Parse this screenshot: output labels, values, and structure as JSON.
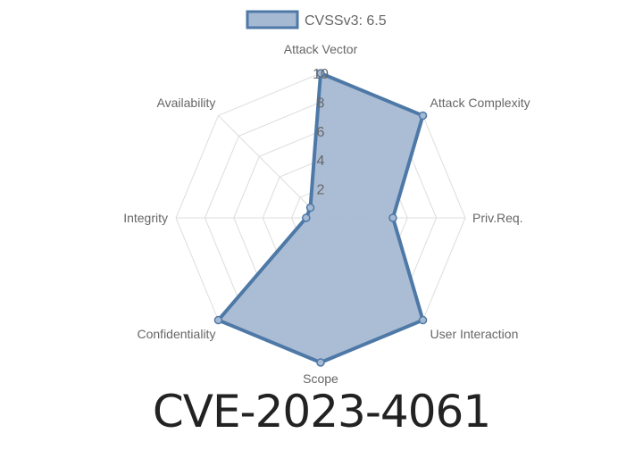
{
  "chart_data": {
    "type": "radar",
    "title": "CVE-2023-4061",
    "categories": [
      "Attack Vector",
      "Attack Complexity",
      "Priv.Req.",
      "User Interaction",
      "Scope",
      "Confidentiality",
      "Integrity",
      "Availability"
    ],
    "series": [
      {
        "name": "CVSSv3: 6.5",
        "values": [
          10,
          10,
          5,
          10,
          10,
          10,
          1,
          1
        ]
      }
    ],
    "rlim": [
      0,
      10
    ],
    "ticks": [
      "2",
      "4",
      "6",
      "8",
      "10"
    ],
    "grid": true,
    "legend": "top",
    "colors": {
      "line": "#4e79a7",
      "fill": "#a5b9d3",
      "grid": "#dddddd",
      "label": "#666666"
    }
  }
}
